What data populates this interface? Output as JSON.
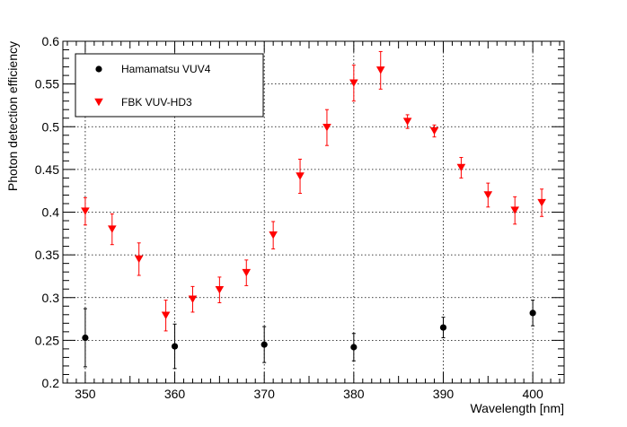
{
  "chart_data": {
    "type": "scatter",
    "xlabel": "Wavelength [nm]",
    "ylabel": "Photon detection efficiency",
    "xlim": [
      347.5,
      403.5
    ],
    "ylim": [
      0.2,
      0.6
    ],
    "x_ticks": [
      350,
      360,
      370,
      380,
      390,
      400
    ],
    "y_ticks": [
      0.2,
      0.25,
      0.3,
      0.35,
      0.4,
      0.45,
      0.5,
      0.55,
      0.6
    ],
    "grid": true,
    "legend_position": "top-left",
    "series": [
      {
        "name": "Hamamatsu VUV4",
        "marker": "circle",
        "color": "#000000",
        "points": [
          {
            "x": 350,
            "y": 0.253,
            "err": 0.034
          },
          {
            "x": 360,
            "y": 0.243,
            "err": 0.026
          },
          {
            "x": 370,
            "y": 0.245,
            "err": 0.021
          },
          {
            "x": 380,
            "y": 0.242,
            "err": 0.016
          },
          {
            "x": 390,
            "y": 0.265,
            "err": 0.012
          },
          {
            "x": 400,
            "y": 0.282,
            "err": 0.015
          }
        ]
      },
      {
        "name": "FBK VUV-HD3",
        "marker": "triangle-down",
        "color": "#ff0000",
        "points": [
          {
            "x": 350,
            "y": 0.401,
            "err": 0.016
          },
          {
            "x": 353,
            "y": 0.38,
            "err": 0.018
          },
          {
            "x": 356,
            "y": 0.345,
            "err": 0.019
          },
          {
            "x": 359,
            "y": 0.279,
            "err": 0.018
          },
          {
            "x": 362,
            "y": 0.298,
            "err": 0.015
          },
          {
            "x": 365,
            "y": 0.309,
            "err": 0.015
          },
          {
            "x": 368,
            "y": 0.329,
            "err": 0.015
          },
          {
            "x": 371,
            "y": 0.373,
            "err": 0.016
          },
          {
            "x": 374,
            "y": 0.442,
            "err": 0.02
          },
          {
            "x": 377,
            "y": 0.499,
            "err": 0.021
          },
          {
            "x": 380,
            "y": 0.551,
            "err": 0.021
          },
          {
            "x": 383,
            "y": 0.566,
            "err": 0.022
          },
          {
            "x": 386,
            "y": 0.506,
            "err": 0.008
          },
          {
            "x": 389,
            "y": 0.495,
            "err": 0.007
          },
          {
            "x": 392,
            "y": 0.452,
            "err": 0.012
          },
          {
            "x": 395,
            "y": 0.42,
            "err": 0.014
          },
          {
            "x": 398,
            "y": 0.402,
            "err": 0.016
          },
          {
            "x": 401,
            "y": 0.411,
            "err": 0.016
          }
        ]
      }
    ]
  }
}
